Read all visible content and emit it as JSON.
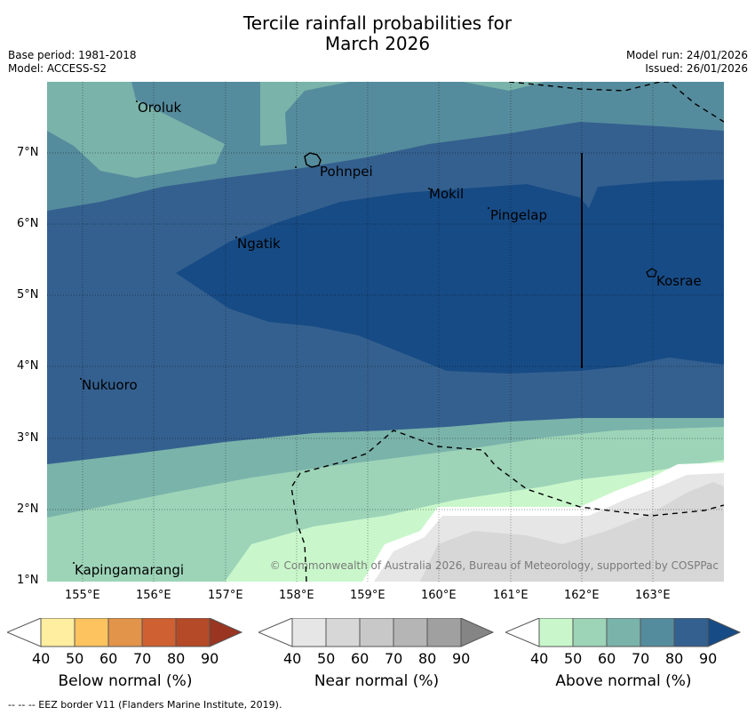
{
  "title_line1": "Tercile rainfall probabilities for",
  "title_line2": "March 2026",
  "base_period": "Base period: 1981-2018",
  "model": "Model: ACCESS-S2",
  "model_run": "Model run: 24/01/2026",
  "issued": "Issued: 26/01/2026",
  "copyright": "© Commonwealth of Australia 2026, Bureau of Meteorology, supported by COSPPac",
  "places": {
    "oroluk": "Oroluk",
    "pohnpei": "Pohnpei",
    "mokil": "Mokil",
    "pingelap": "Pingelap",
    "ngatik": "Ngatik",
    "kosrae": "Kosrae",
    "nukuoro": "Nukuoro",
    "kapingamarangi": "Kapingamarangi"
  },
  "lat_ticks": [
    "7°N",
    "6°N",
    "5°N",
    "4°N",
    "3°N",
    "2°N",
    "1°N"
  ],
  "lon_ticks": [
    "155°E",
    "156°E",
    "157°E",
    "158°E",
    "159°E",
    "160°E",
    "161°E",
    "162°E",
    "163°E"
  ],
  "legends": {
    "below": {
      "label": "Below normal (%)",
      "colors": [
        "#ffeea0",
        "#fcc35f",
        "#e2944a",
        "#cf6031",
        "#b44a28",
        "#993521"
      ]
    },
    "near": {
      "label": "Near normal (%)",
      "colors": [
        "#e6e6e6",
        "#d7d7d7",
        "#c8c8c8",
        "#b5b5b5",
        "#a0a0a0",
        "#858585"
      ]
    },
    "above": {
      "label": "Above normal (%)",
      "colors": [
        "#c9f7cb",
        "#9dd4b8",
        "#7ab3aa",
        "#558c9d",
        "#34608f",
        "#174b85"
      ]
    },
    "ticks": [
      "40",
      "50",
      "60",
      "70",
      "80",
      "90"
    ]
  },
  "footer": "-- -- -- EEZ border V11 (Flanders Marine Institute, 2019)."
}
